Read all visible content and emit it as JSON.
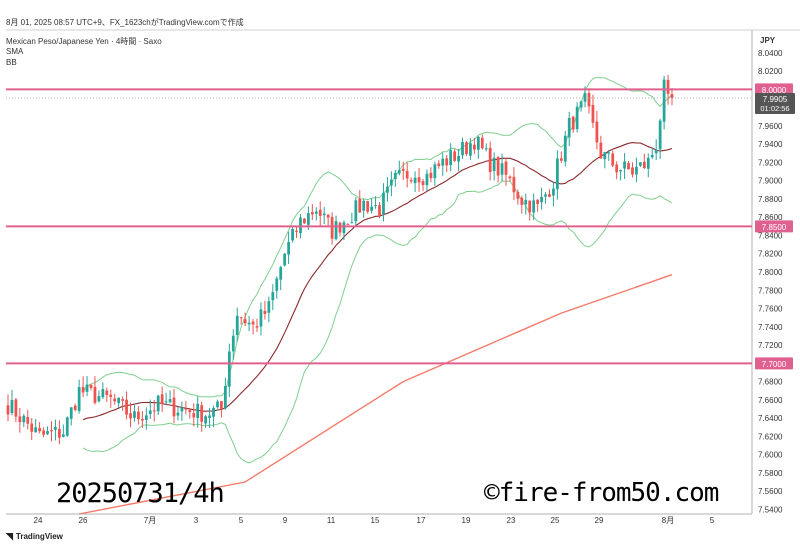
{
  "header": {
    "top": "8月 01, 2025 08:57 UTC+9、FX_1623chがTradingView.comで作成",
    "symbol": "Mexican Peso/Japanese Yen · 4時間 · Saxo",
    "ind1": "SMA",
    "ind2": "BB"
  },
  "price_axis_title": "JPY",
  "watermark_left": "20250731/4h",
  "watermark_right": "©fire-from50.com",
  "footer_logo": "TradingView",
  "colors": {
    "up": "#26a69a",
    "down": "#ef5350",
    "band": "#7fcf8f",
    "mid": "#8b2a2a",
    "sma": "#f47a6a",
    "level": "#e0608f",
    "current": "#555555"
  },
  "chart_data": {
    "type": "candlestick",
    "x_tick_labels": [
      "24",
      "26",
      "7月",
      "3",
      "5",
      "9",
      "11",
      "15",
      "17",
      "19",
      "23",
      "25",
      "29",
      "8月",
      "5"
    ],
    "y_ticks": [
      8.04,
      8.02,
      7.96,
      7.94,
      7.92,
      7.9,
      7.88,
      7.86,
      7.84,
      7.82,
      7.8,
      7.78,
      7.76,
      7.74,
      7.72,
      7.68,
      7.66,
      7.64,
      7.62,
      7.6,
      7.58,
      7.56,
      7.54
    ],
    "ylim": [
      7.535,
      8.065
    ],
    "horizontal_levels": [
      {
        "value": 8.0,
        "label": "8.0000"
      },
      {
        "value": 7.85,
        "label": "7.8500"
      },
      {
        "value": 7.7,
        "label": "7.7000"
      }
    ],
    "current_price": {
      "value": 7.9905,
      "label": "7.9905",
      "countdown": "01:02:56"
    },
    "anchors_close": [
      [
        0,
        7.655
      ],
      [
        8,
        7.62
      ],
      [
        14,
        7.625
      ],
      [
        18,
        7.67
      ],
      [
        26,
        7.66
      ],
      [
        32,
        7.64
      ],
      [
        38,
        7.655
      ],
      [
        44,
        7.65
      ],
      [
        50,
        7.645
      ],
      [
        54,
        7.65
      ],
      [
        56,
        7.715
      ],
      [
        58,
        7.755
      ],
      [
        62,
        7.74
      ],
      [
        66,
        7.76
      ],
      [
        70,
        7.82
      ],
      [
        74,
        7.855
      ],
      [
        78,
        7.87
      ],
      [
        82,
        7.845
      ],
      [
        86,
        7.86
      ],
      [
        90,
        7.875
      ],
      [
        94,
        7.87
      ],
      [
        98,
        7.9
      ],
      [
        102,
        7.91
      ],
      [
        106,
        7.905
      ],
      [
        110,
        7.92
      ],
      [
        114,
        7.93
      ],
      [
        118,
        7.945
      ],
      [
        122,
        7.92
      ],
      [
        126,
        7.905
      ],
      [
        130,
        7.88
      ],
      [
        134,
        7.87
      ],
      [
        138,
        7.9
      ],
      [
        142,
        7.96
      ],
      [
        146,
        7.985
      ],
      [
        150,
        7.93
      ],
      [
        154,
        7.915
      ],
      [
        158,
        7.91
      ],
      [
        162,
        7.92
      ],
      [
        164,
        7.94
      ],
      [
        166,
        8.0
      ],
      [
        167,
        7.995
      ],
      [
        168,
        7.9905
      ]
    ],
    "sma_200": [
      [
        18,
        7.535
      ],
      [
        60,
        7.57
      ],
      [
        100,
        7.68
      ],
      [
        140,
        7.755
      ],
      [
        168,
        7.797
      ]
    ],
    "bollinger_mid_note": "SMA(20) of closes",
    "bollinger_bands_note": "2 standard deviations"
  }
}
